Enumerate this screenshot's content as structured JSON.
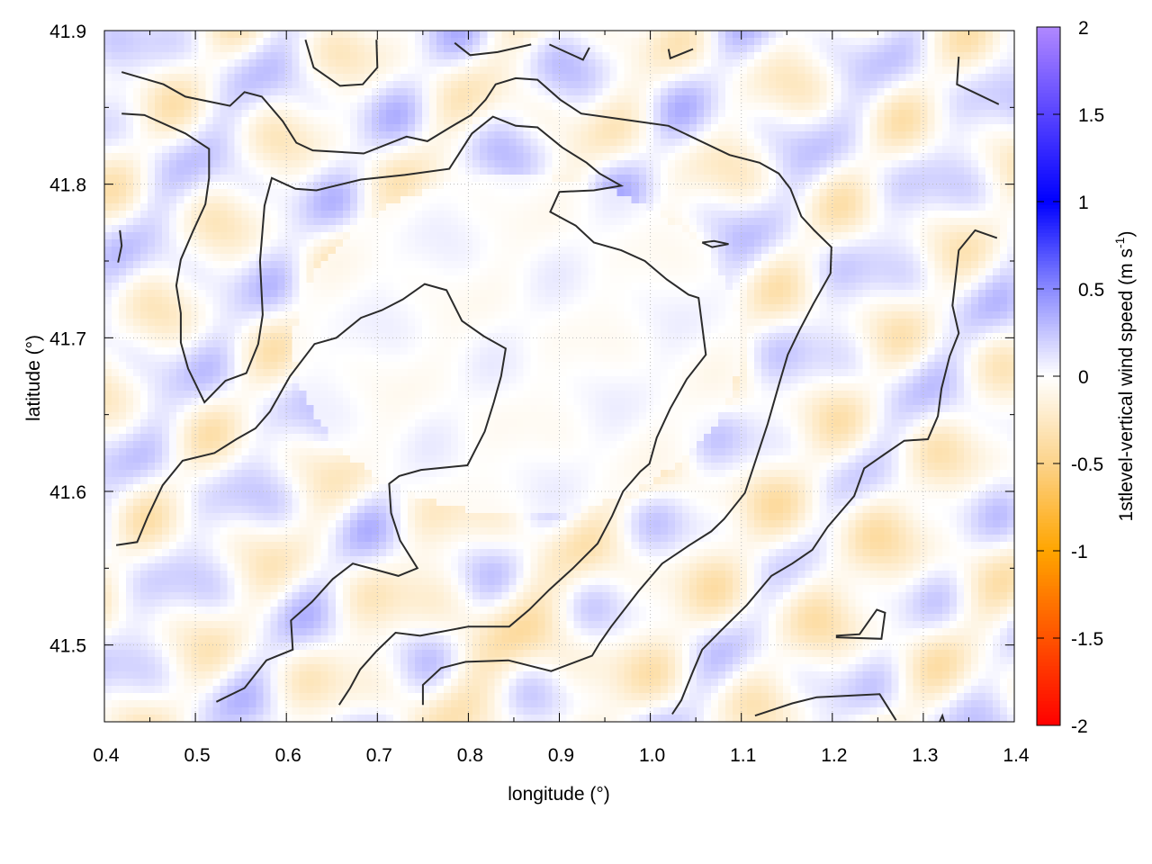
{
  "chart_data": {
    "type": "heatmap",
    "title": "",
    "xlabel": "longitude (°)",
    "ylabel": "latitude (°)",
    "xlim": [
      0.4,
      1.4
    ],
    "ylim": [
      41.45,
      41.9
    ],
    "xticks": [
      "0.4",
      "0.5",
      "0.6",
      "0.7",
      "0.8",
      "0.9",
      "1.0",
      "1.1",
      "1.2",
      "1.3",
      "1.4"
    ],
    "yticks": [
      "41.5",
      "41.6",
      "41.7",
      "41.8",
      "41.9"
    ],
    "grid": true,
    "colorbar": {
      "label": "1stlevel-vertical wind speed (m s",
      "label_sup": "-1",
      "label_end": ")",
      "range": [
        -2,
        2
      ],
      "ticks": [
        "2",
        "1.5",
        "1",
        "0.5",
        "0",
        "-0.5",
        "-1",
        "-1.5",
        "-2"
      ],
      "colors": [
        {
          "v": -2,
          "c": "#ff0000"
        },
        {
          "v": -1,
          "c": "#ffa500"
        },
        {
          "v": -0.5,
          "c": "#fcd38a"
        },
        {
          "v": 0,
          "c": "#ffffff"
        },
        {
          "v": 0.5,
          "c": "#8a8aff"
        },
        {
          "v": 1,
          "c": "#0000ff"
        },
        {
          "v": 2,
          "c": "#b088ff"
        }
      ]
    },
    "field_note_values": "weak vertical wind, mostly between -0.5 and 0.5 m/s",
    "contour_color": "#2b2b2b",
    "contours": [
      [
        [
          0.419,
          41.873
        ],
        [
          0.465,
          41.865
        ],
        [
          0.489,
          41.857
        ],
        [
          0.538,
          41.851
        ],
        [
          0.554,
          41.86
        ],
        [
          0.573,
          41.857
        ],
        [
          0.596,
          41.841
        ],
        [
          0.611,
          41.827
        ],
        [
          0.629,
          41.822
        ],
        [
          0.685,
          41.82
        ],
        [
          0.732,
          41.831
        ],
        [
          0.755,
          41.828
        ],
        [
          0.78,
          41.837
        ],
        [
          0.803,
          41.845
        ],
        [
          0.819,
          41.855
        ],
        [
          0.83,
          41.865
        ],
        [
          0.852,
          41.869
        ],
        [
          0.876,
          41.868
        ],
        [
          0.901,
          41.855
        ],
        [
          0.924,
          41.846
        ],
        [
          0.972,
          41.842
        ],
        [
          1.02,
          41.838
        ],
        [
          1.087,
          41.819
        ],
        [
          1.12,
          41.814
        ],
        [
          1.141,
          41.807
        ],
        [
          1.154,
          41.797
        ],
        [
          1.166,
          41.779
        ],
        [
          1.18,
          41.77
        ],
        [
          1.199,
          41.759
        ],
        [
          1.198,
          41.742
        ],
        [
          1.179,
          41.722
        ],
        [
          1.164,
          41.705
        ],
        [
          1.151,
          41.689
        ],
        [
          1.142,
          41.671
        ],
        [
          1.129,
          41.644
        ],
        [
          1.104,
          41.599
        ],
        [
          1.081,
          41.582
        ],
        [
          1.067,
          41.574
        ],
        [
          1.043,
          41.565
        ],
        [
          1.013,
          41.553
        ],
        [
          0.987,
          41.535
        ],
        [
          0.957,
          41.512
        ],
        [
          0.944,
          41.501
        ],
        [
          0.936,
          41.493
        ],
        [
          0.891,
          41.483
        ],
        [
          0.844,
          41.49
        ],
        [
          0.797,
          41.489
        ],
        [
          0.77,
          41.485
        ],
        [
          0.75,
          41.474
        ],
        [
          0.75,
          41.461
        ]
      ],
      [
        [
          0.419,
          41.846
        ],
        [
          0.444,
          41.845
        ],
        [
          0.489,
          41.833
        ],
        [
          0.515,
          41.823
        ],
        [
          0.515,
          41.804
        ],
        [
          0.511,
          41.787
        ],
        [
          0.497,
          41.769
        ],
        [
          0.484,
          41.751
        ],
        [
          0.479,
          41.734
        ],
        [
          0.484,
          41.716
        ],
        [
          0.484,
          41.697
        ],
        [
          0.492,
          41.68
        ],
        [
          0.51,
          41.658
        ],
        [
          0.533,
          41.672
        ],
        [
          0.556,
          41.677
        ],
        [
          0.569,
          41.696
        ],
        [
          0.574,
          41.715
        ],
        [
          0.571,
          41.75
        ],
        [
          0.576,
          41.786
        ],
        [
          0.584,
          41.804
        ],
        [
          0.61,
          41.797
        ],
        [
          0.633,
          41.796
        ],
        [
          0.682,
          41.803
        ],
        [
          0.73,
          41.806
        ],
        [
          0.779,
          41.81
        ],
        [
          0.804,
          41.833
        ],
        [
          0.827,
          41.844
        ],
        [
          0.852,
          41.838
        ],
        [
          0.876,
          41.837
        ],
        [
          0.903,
          41.824
        ],
        [
          0.93,
          41.814
        ],
        [
          0.944,
          41.807
        ],
        [
          0.968,
          41.799
        ],
        [
          0.938,
          41.796
        ],
        [
          0.9,
          41.795
        ],
        [
          0.89,
          41.782
        ],
        [
          0.918,
          41.773
        ],
        [
          0.938,
          41.762
        ],
        [
          0.968,
          41.757
        ],
        [
          0.994,
          41.75
        ],
        [
          1.018,
          41.738
        ],
        [
          1.042,
          41.728
        ],
        [
          1.053,
          41.726
        ],
        [
          1.061,
          41.689
        ],
        [
          1.04,
          41.673
        ],
        [
          1.022,
          41.654
        ],
        [
          1.007,
          41.635
        ],
        [
          0.999,
          41.618
        ],
        [
          0.989,
          41.613
        ],
        [
          0.97,
          41.6
        ],
        [
          0.958,
          41.584
        ],
        [
          0.942,
          41.566
        ],
        [
          0.915,
          41.55
        ],
        [
          0.889,
          41.536
        ],
        [
          0.867,
          41.523
        ],
        [
          0.845,
          41.512
        ],
        [
          0.8,
          41.512
        ],
        [
          0.747,
          41.506
        ],
        [
          0.72,
          41.508
        ],
        [
          0.699,
          41.496
        ],
        [
          0.681,
          41.484
        ],
        [
          0.67,
          41.472
        ],
        [
          0.658,
          41.461
        ]
      ],
      [
        [
          0.413,
          41.565
        ],
        [
          0.436,
          41.567
        ],
        [
          0.448,
          41.584
        ],
        [
          0.464,
          41.604
        ],
        [
          0.486,
          41.62
        ],
        [
          0.521,
          41.625
        ],
        [
          0.545,
          41.634
        ],
        [
          0.566,
          41.641
        ],
        [
          0.582,
          41.652
        ],
        [
          0.604,
          41.675
        ],
        [
          0.631,
          41.696
        ],
        [
          0.655,
          41.7
        ],
        [
          0.682,
          41.713
        ],
        [
          0.705,
          41.718
        ],
        [
          0.728,
          41.725
        ],
        [
          0.752,
          41.735
        ],
        [
          0.776,
          41.731
        ],
        [
          0.793,
          41.711
        ],
        [
          0.817,
          41.701
        ],
        [
          0.841,
          41.693
        ],
        [
          0.836,
          41.675
        ],
        [
          0.828,
          41.658
        ],
        [
          0.818,
          41.639
        ],
        [
          0.799,
          41.617
        ],
        [
          0.748,
          41.614
        ],
        [
          0.724,
          41.61
        ],
        [
          0.713,
          41.605
        ],
        [
          0.715,
          41.586
        ],
        [
          0.725,
          41.568
        ],
        [
          0.744,
          41.55
        ],
        [
          0.723,
          41.545
        ],
        [
          0.698,
          41.549
        ],
        [
          0.673,
          41.553
        ],
        [
          0.651,
          41.543
        ],
        [
          0.628,
          41.528
        ],
        [
          0.605,
          41.516
        ],
        [
          0.607,
          41.497
        ],
        [
          0.578,
          41.49
        ],
        [
          0.554,
          41.472
        ],
        [
          0.523,
          41.463
        ]
      ],
      [
        [
          1.381,
          41.765
        ],
        [
          1.357,
          41.77
        ],
        [
          1.339,
          41.757
        ],
        [
          1.332,
          41.721
        ],
        [
          1.339,
          41.703
        ],
        [
          1.329,
          41.688
        ],
        [
          1.32,
          41.667
        ],
        [
          1.316,
          41.649
        ],
        [
          1.305,
          41.634
        ],
        [
          1.279,
          41.633
        ],
        [
          1.257,
          41.624
        ],
        [
          1.235,
          41.615
        ],
        [
          1.224,
          41.597
        ],
        [
          1.195,
          41.577
        ],
        [
          1.178,
          41.562
        ],
        [
          1.156,
          41.553
        ],
        [
          1.133,
          41.545
        ],
        [
          1.106,
          41.526
        ],
        [
          1.077,
          41.509
        ],
        [
          1.057,
          41.497
        ],
        [
          1.047,
          41.483
        ],
        [
          1.034,
          41.464
        ],
        [
          1.024,
          41.455
        ]
      ],
      [
        [
          1.115,
          41.454
        ],
        [
          1.156,
          41.462
        ],
        [
          1.183,
          41.466
        ],
        [
          1.252,
          41.468
        ],
        [
          1.27,
          41.451
        ]
      ],
      [
        [
          1.204,
          41.506
        ],
        [
          1.23,
          41.507
        ],
        [
          1.249,
          41.523
        ],
        [
          1.258,
          41.521
        ],
        [
          1.254,
          41.504
        ],
        [
          1.204,
          41.505
        ]
      ],
      [
        [
          1.057,
          41.762
        ],
        [
          1.07,
          41.763
        ],
        [
          1.086,
          41.761
        ],
        [
          1.068,
          41.759
        ],
        [
          1.057,
          41.762
        ]
      ],
      [
        [
          0.621,
          41.894
        ],
        [
          0.63,
          41.876
        ],
        [
          0.659,
          41.864
        ],
        [
          0.684,
          41.865
        ],
        [
          0.7,
          41.876
        ],
        [
          0.699,
          41.894
        ]
      ],
      [
        [
          0.785,
          41.892
        ],
        [
          0.802,
          41.884
        ],
        [
          0.832,
          41.886
        ],
        [
          0.869,
          41.891
        ]
      ],
      [
        [
          0.889,
          41.891
        ],
        [
          0.926,
          41.881
        ],
        [
          0.933,
          41.889
        ]
      ],
      [
        [
          1.02,
          41.888
        ],
        [
          1.022,
          41.882
        ],
        [
          1.047,
          41.888
        ]
      ],
      [
        [
          1.339,
          41.883
        ],
        [
          1.337,
          41.865
        ],
        [
          1.355,
          41.86
        ],
        [
          1.383,
          41.852
        ]
      ],
      [
        [
          0.417,
          41.77
        ],
        [
          0.419,
          41.76
        ],
        [
          0.415,
          41.749
        ]
      ],
      [
        [
          1.318,
          41.45
        ],
        [
          1.321,
          41.454
        ],
        [
          1.323,
          41.45
        ]
      ]
    ]
  }
}
